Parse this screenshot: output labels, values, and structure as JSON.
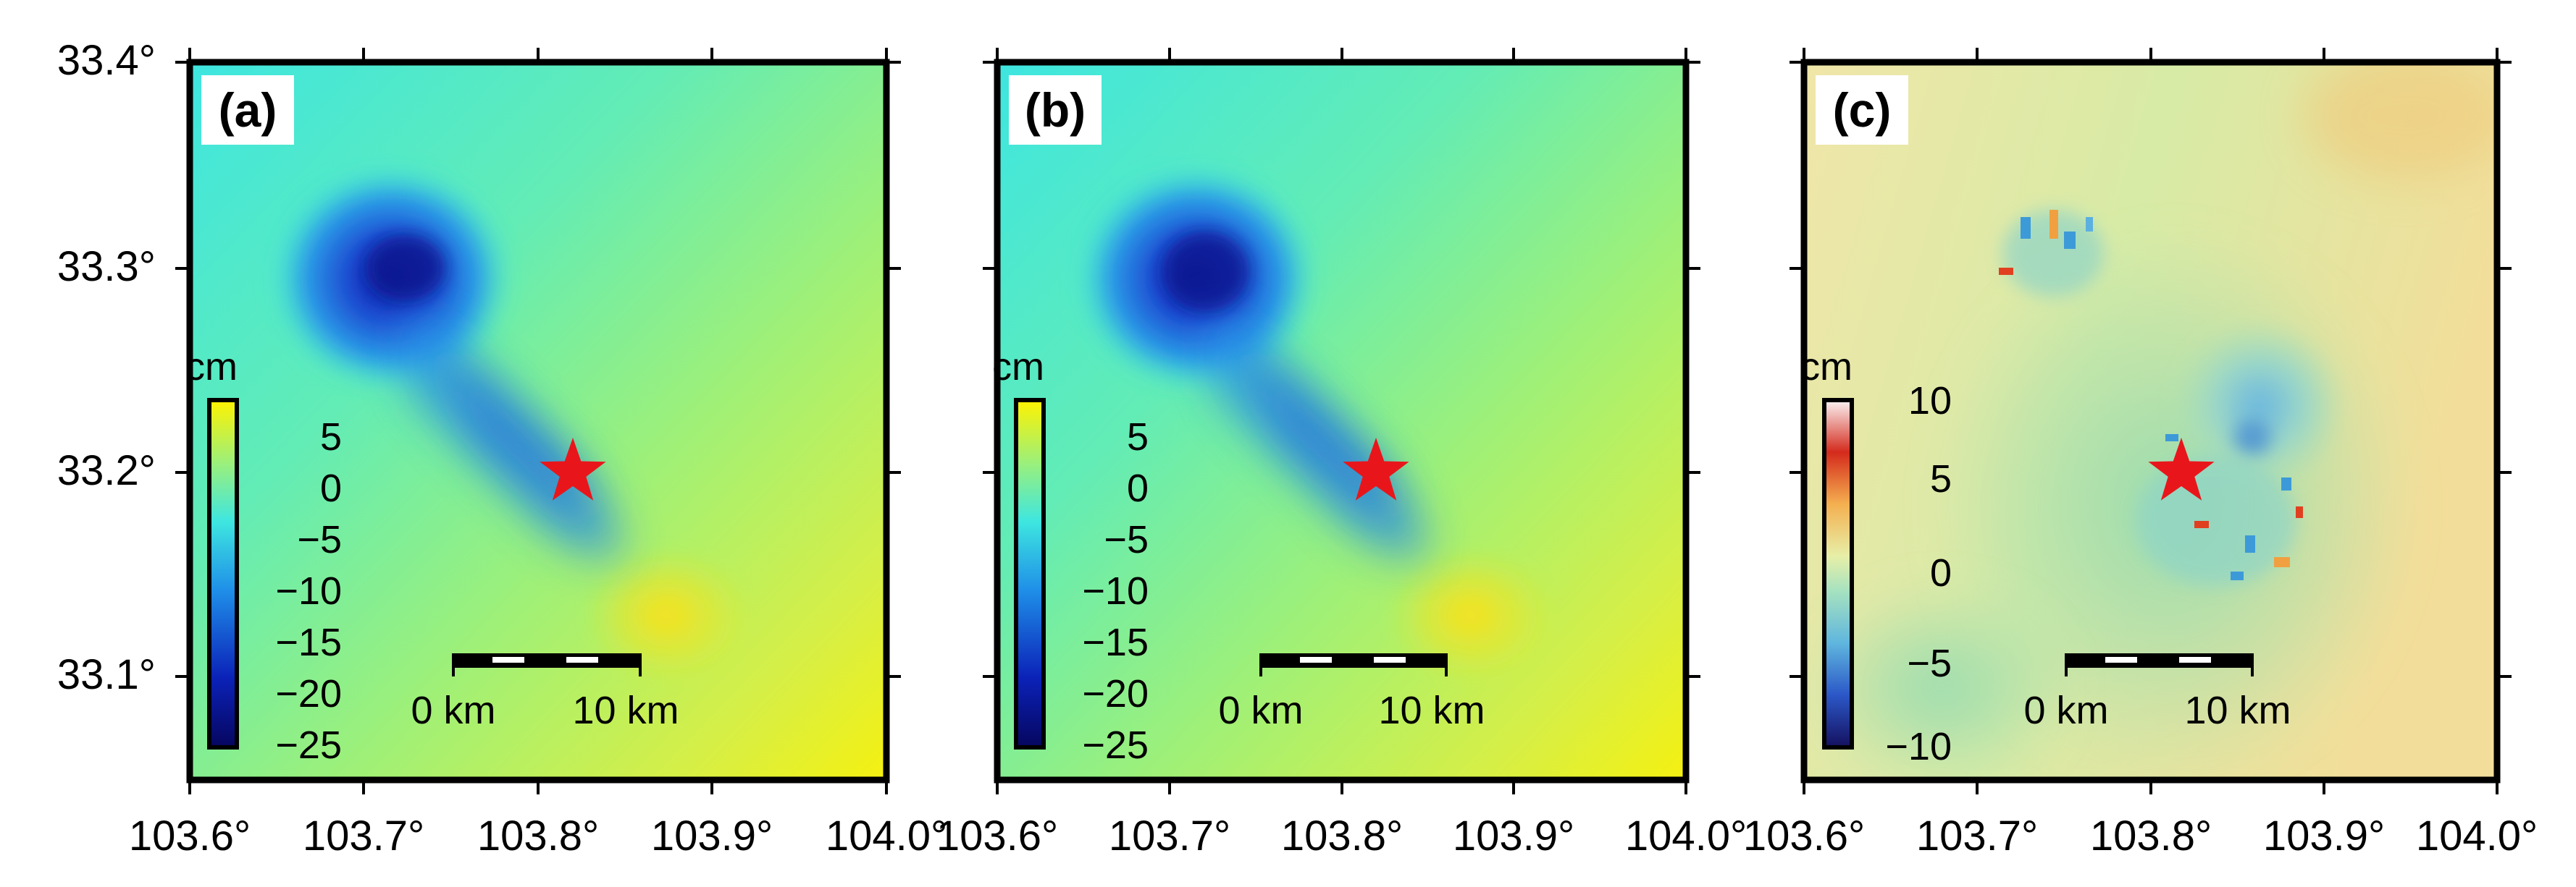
{
  "figure": {
    "y_ticks": [
      "33.1°",
      "33.2°",
      "33.3°",
      "33.4°"
    ],
    "x_ticks": [
      "103.6°",
      "103.7°",
      "103.8°",
      "103.9°",
      "104.0°"
    ]
  },
  "panels": [
    {
      "label": "(a)",
      "colorbar": {
        "unit": "cm",
        "tick_labels": [
          "5",
          "0",
          "−5",
          "−10",
          "−15",
          "−20",
          "−25"
        ]
      },
      "scale_bar": {
        "left_label": "0 km",
        "right_label": "10 km"
      },
      "epicenter": {
        "lon": 103.82,
        "lat": 33.2,
        "symbol": "star-icon",
        "color": "#e8161b"
      }
    },
    {
      "label": "(b)",
      "colorbar": {
        "unit": "cm",
        "tick_labels": [
          "5",
          "0",
          "−5",
          "−10",
          "−15",
          "−20",
          "−25"
        ]
      },
      "scale_bar": {
        "left_label": "0 km",
        "right_label": "10 km"
      },
      "epicenter": {
        "lon": 103.82,
        "lat": 33.2,
        "symbol": "star-icon",
        "color": "#e8161b"
      }
    },
    {
      "label": "(c)",
      "colorbar": {
        "unit": "cm",
        "tick_labels": [
          "10",
          "5",
          "0",
          "−5",
          "−10"
        ]
      },
      "scale_bar": {
        "left_label": "0 km",
        "right_label": "10 km"
      },
      "epicenter": {
        "lon": 103.82,
        "lat": 33.2,
        "symbol": "star-icon",
        "color": "#e8161b"
      }
    }
  ],
  "colors": {
    "frame": "#000000",
    "star": "#e8161b"
  }
}
